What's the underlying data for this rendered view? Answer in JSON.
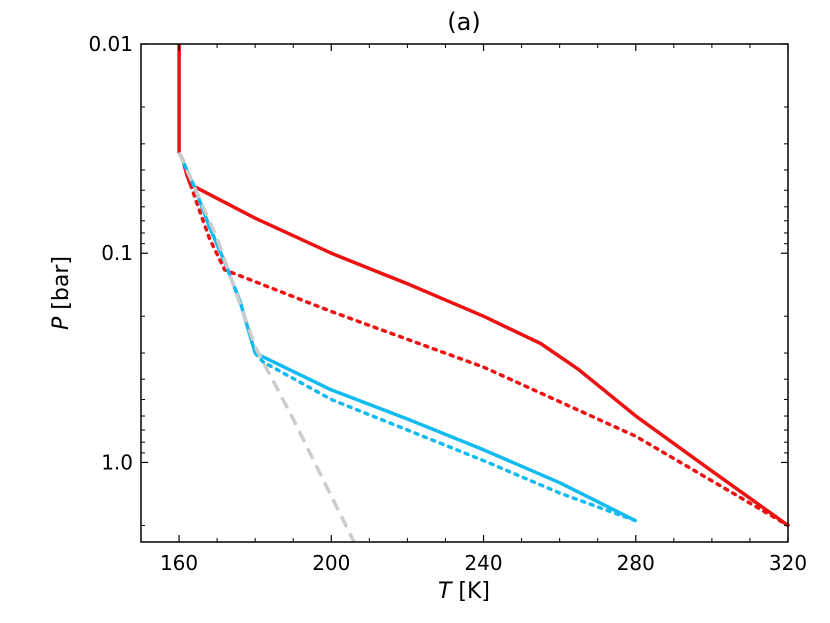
{
  "chart_data": {
    "type": "line",
    "title": "(a)",
    "xlabel_symbol": "T",
    "xlabel_unit": " [K]",
    "ylabel_symbol": "P",
    "ylabel_unit": " [bar]",
    "xlim": [
      150,
      320
    ],
    "xticks": [
      160,
      200,
      240,
      280,
      320
    ],
    "xtick_labels": [
      "160",
      "200",
      "240",
      "280",
      "320"
    ],
    "ylim": [
      0.01,
      2.4
    ],
    "yscale": "log",
    "y_inverted": true,
    "yticks": [
      0.01,
      0.1,
      1.0
    ],
    "ytick_labels": [
      "0.01",
      "0.1",
      "1.0"
    ],
    "grid": false,
    "series": [
      {
        "color": "#ee1111",
        "style": "solid",
        "x": [
          160,
          160,
          160,
          161,
          162,
          163,
          180,
          200,
          220,
          240,
          255,
          265,
          280,
          300,
          320
        ],
        "y": [
          0.01,
          0.02,
          0.033,
          0.036,
          0.042,
          0.047,
          0.068,
          0.1,
          0.14,
          0.2,
          0.27,
          0.36,
          0.6,
          1.1,
          2.0
        ]
      },
      {
        "color": "#ee1111",
        "style": "dotted",
        "x": [
          163,
          165,
          168,
          172,
          200,
          240,
          280,
          320
        ],
        "y": [
          0.047,
          0.06,
          0.085,
          0.12,
          0.19,
          0.35,
          0.75,
          2.0
        ]
      },
      {
        "color": "#11bbf0",
        "style": "solid",
        "x": [
          160,
          164,
          168,
          172,
          176,
          180,
          200,
          220,
          240,
          260,
          280
        ],
        "y": [
          0.033,
          0.048,
          0.075,
          0.11,
          0.17,
          0.3,
          0.45,
          0.62,
          0.87,
          1.25,
          1.9
        ]
      },
      {
        "color": "#11bbf0",
        "style": "dotted",
        "x": [
          180,
          182,
          200,
          220,
          240,
          260,
          280
        ],
        "y": [
          0.3,
          0.33,
          0.5,
          0.7,
          0.98,
          1.4,
          1.9
        ]
      },
      {
        "color": "#cccccc",
        "style": "dashed",
        "x": [
          160,
          170,
          180,
          190,
          200,
          206
        ],
        "y": [
          0.033,
          0.085,
          0.28,
          0.62,
          1.45,
          2.4
        ]
      }
    ]
  }
}
